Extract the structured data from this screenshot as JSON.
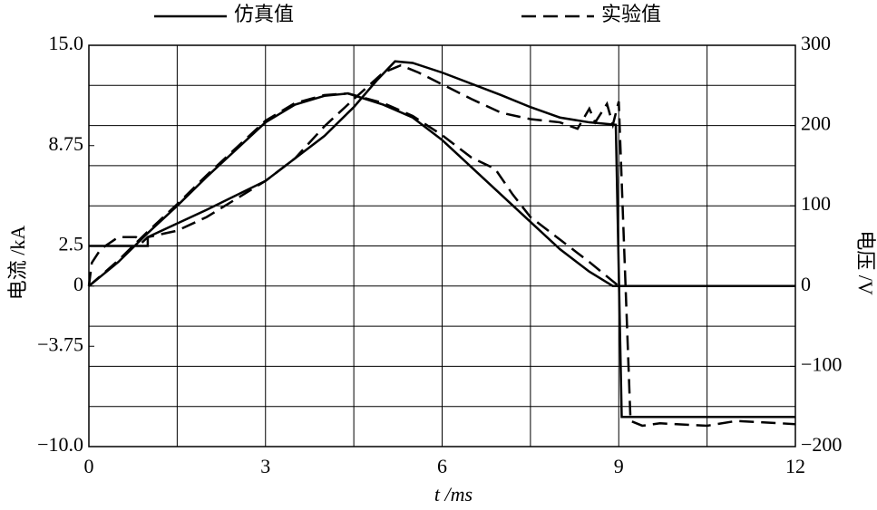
{
  "chart_data": {
    "type": "line",
    "legend": [
      {
        "name": "仿真值",
        "style": "solid"
      },
      {
        "name": "实验值",
        "style": "dashed"
      }
    ],
    "xlabel": "t /ms",
    "ylabel": "电流 /kA",
    "y2label": "电压 /V",
    "xlim": [
      0,
      12
    ],
    "xticks": [
      0,
      3,
      6,
      9,
      12
    ],
    "xgrid": [
      0,
      1.5,
      3,
      4.5,
      6,
      7.5,
      9,
      10.5,
      12
    ],
    "ylim": [
      -10,
      15
    ],
    "yticks": [
      {
        "value": 15,
        "label": "15.0"
      },
      8.75,
      2.5,
      0,
      {
        "value": -3.75,
        "label": "−3.75"
      },
      {
        "value": -10,
        "label": "−10.0"
      }
    ],
    "y2lim": [
      -200,
      300
    ],
    "y2ticks": [
      300,
      200,
      100,
      0,
      {
        "value": -100,
        "label": "−100"
      },
      {
        "value": -200,
        "label": "−200"
      }
    ],
    "y2grid": [
      300,
      250,
      200,
      150,
      100,
      50,
      0,
      -50,
      -100,
      -150,
      -200
    ],
    "color": "#000000",
    "series": [
      {
        "style": "solid",
        "axis": "y",
        "x": [
          0,
          0.5,
          1,
          1.5,
          2,
          2.5,
          3,
          3.5,
          4,
          4.4,
          5,
          5.5,
          6,
          6.5,
          7,
          7.5,
          8,
          8.5,
          8.9,
          12
        ],
        "values": [
          0,
          1.5,
          3.3,
          5.0,
          6.8,
          8.5,
          10.2,
          11.3,
          11.85,
          12.0,
          11.3,
          10.5,
          9.1,
          7.4,
          5.7,
          4.0,
          2.3,
          0.9,
          0,
          0
        ]
      },
      {
        "style": "dashed",
        "axis": "y",
        "x": [
          0,
          0.5,
          1,
          1.5,
          2,
          2.5,
          3,
          3.5,
          4,
          4.4,
          5,
          5.5,
          6,
          6.5,
          6.9,
          7.2,
          7.5,
          8,
          8.5,
          8.8,
          9,
          12
        ],
        "values": [
          0,
          1.6,
          3.4,
          5.1,
          6.9,
          8.6,
          10.3,
          11.4,
          11.9,
          12.0,
          11.4,
          10.6,
          9.4,
          8.0,
          7.3,
          5.7,
          4.3,
          2.9,
          1.5,
          0.6,
          0,
          0
        ]
      },
      {
        "style": "solid",
        "axis": "y2",
        "x": [
          0,
          1,
          1,
          2,
          3,
          4,
          4.5,
          4.9,
          5.2,
          5.5,
          6,
          7,
          7.5,
          8,
          8.5,
          8.95,
          9.05,
          12
        ],
        "values": [
          50,
          50,
          61,
          95,
          131,
          187,
          223,
          257,
          280,
          278,
          266,
          238,
          223,
          210,
          204,
          201,
          -163,
          -163
        ]
      },
      {
        "style": "dashed",
        "axis": "y2",
        "x": [
          0,
          0.05,
          0.2,
          0.5,
          0.8,
          0.9,
          1,
          1.5,
          2,
          3,
          3.5,
          4,
          4.5,
          5,
          5.3,
          5.6,
          6.2,
          6.5,
          7,
          7.5,
          8,
          8.3,
          8.5,
          8.6,
          8.8,
          8.9,
          9.0,
          9.2,
          9.4,
          9.7,
          10.5,
          11,
          12
        ],
        "values": [
          0,
          29,
          46,
          61,
          61,
          54,
          61,
          69,
          86,
          131,
          159,
          199,
          233,
          266,
          275,
          266,
          244,
          233,
          216,
          208,
          204,
          196,
          221,
          204,
          227,
          201,
          230,
          -168,
          -174,
          -171,
          -174,
          -168,
          -172
        ]
      }
    ]
  }
}
